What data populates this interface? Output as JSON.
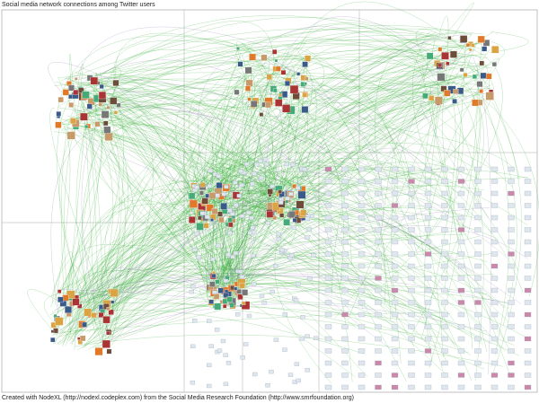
{
  "header": {
    "title": "Social media network connections among Twitter users"
  },
  "footer": {
    "credit": "Created with NodeXL (http://nodexl.codeplex.com) from the Social Media Research Foundation (http://www.smrfoundation.org)"
  }
}
